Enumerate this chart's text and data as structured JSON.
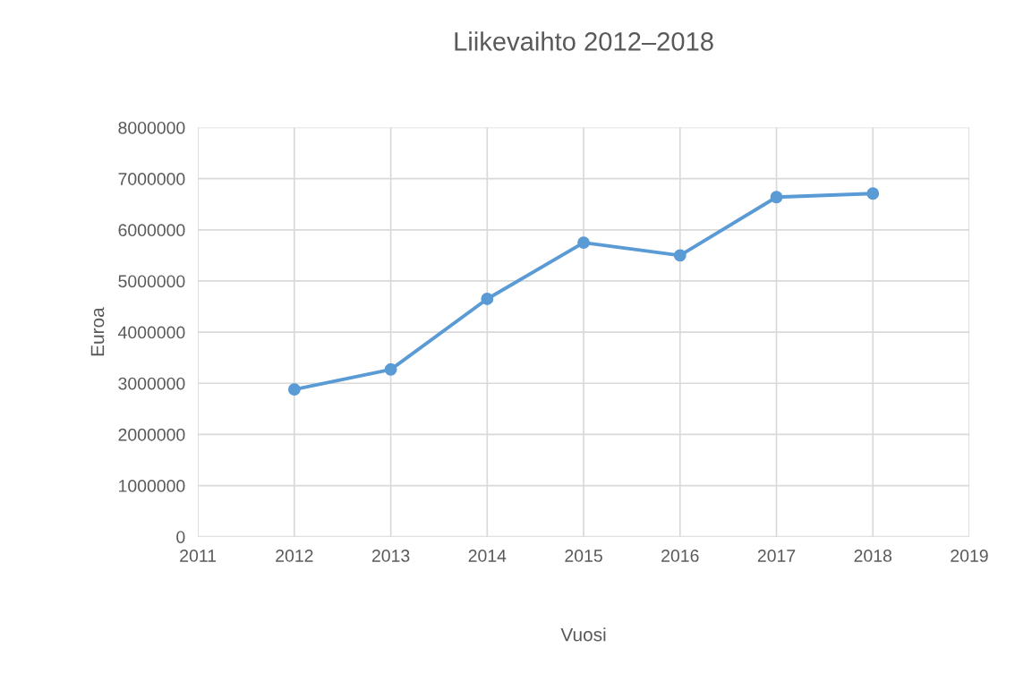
{
  "chart_data": {
    "type": "line",
    "title": "Liikevaihto 2012–2018",
    "xlabel": "Vuosi",
    "ylabel": "Euroa",
    "x": [
      2012,
      2013,
      2014,
      2015,
      2016,
      2017,
      2018
    ],
    "series": [
      {
        "color": "#5b9bd5",
        "values": [
          2880000,
          3270000,
          4650000,
          5750000,
          5500000,
          6640000,
          6710000
        ]
      }
    ],
    "xlim": [
      2011,
      2019
    ],
    "xticks": [
      2011,
      2012,
      2013,
      2014,
      2015,
      2016,
      2017,
      2018,
      2019
    ],
    "ylim": [
      0,
      8000000
    ],
    "yticks": [
      0,
      1000000,
      2000000,
      3000000,
      4000000,
      5000000,
      6000000,
      7000000,
      8000000
    ],
    "grid": true,
    "marker": "circle",
    "line_style": "solid"
  }
}
